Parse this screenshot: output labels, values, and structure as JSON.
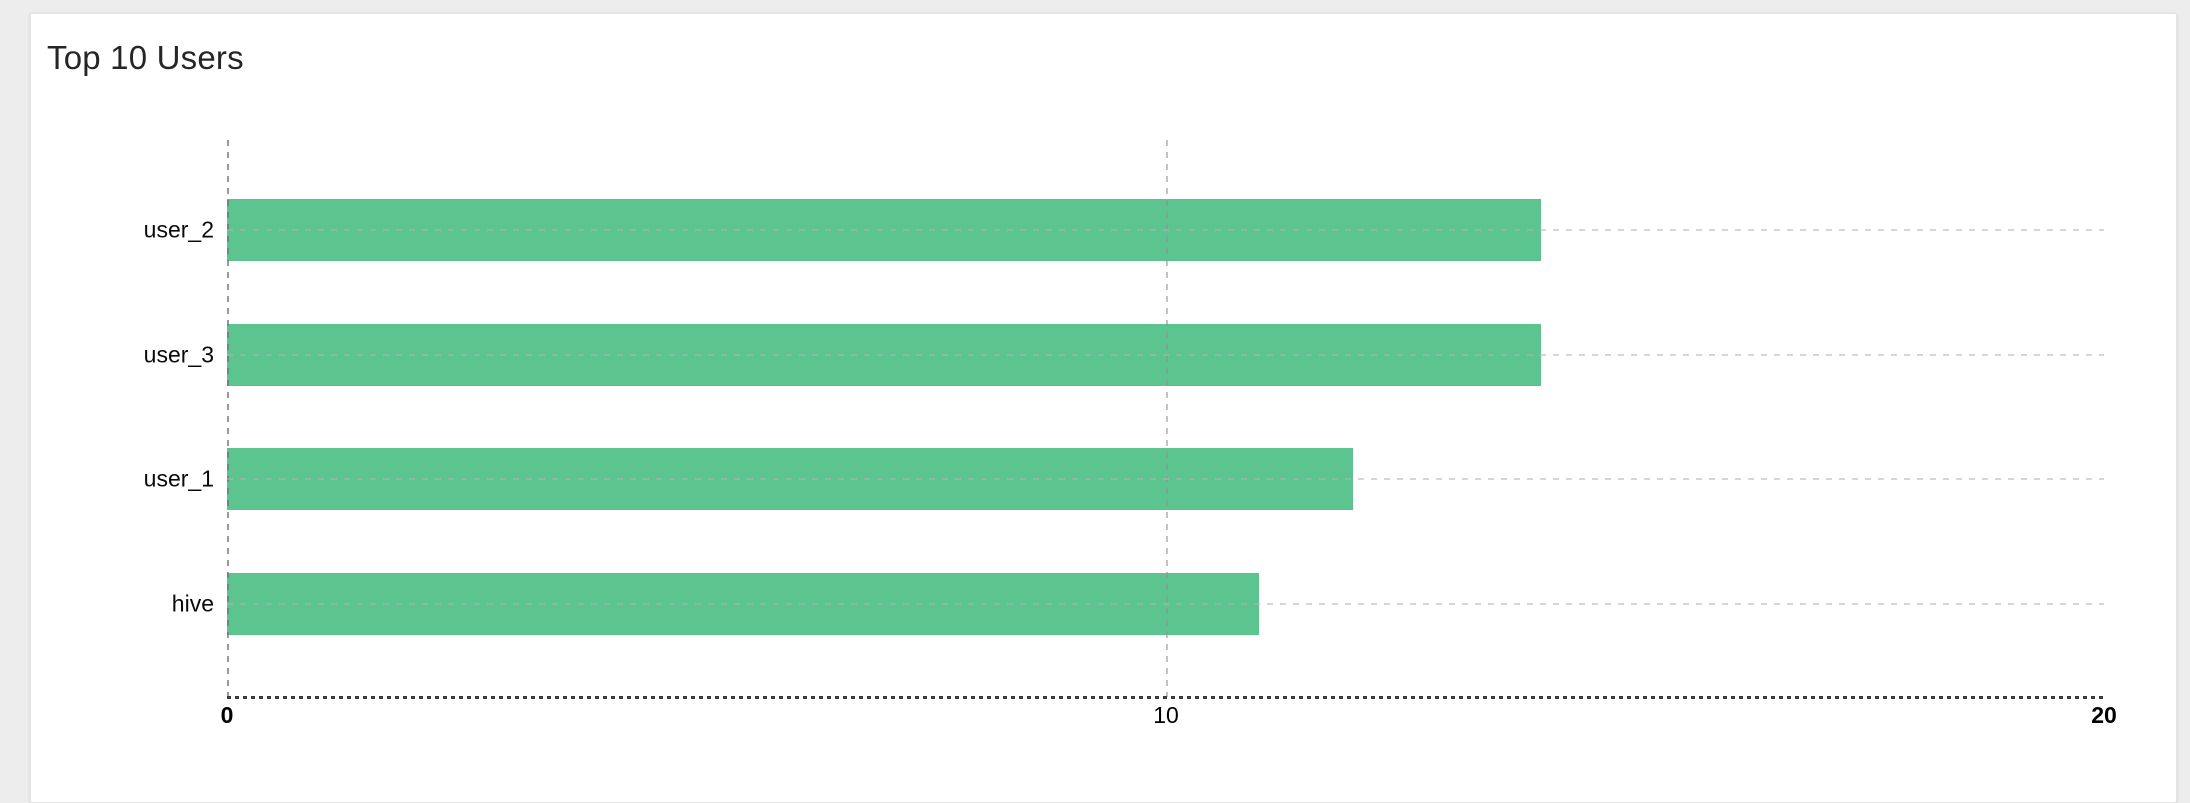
{
  "page": {
    "background_color": "#ededed"
  },
  "card": {
    "title": "Top 10 Users",
    "background_color": "#ffffff"
  },
  "chart_data": {
    "type": "bar",
    "orientation": "horizontal",
    "title": "Top 10 Users",
    "categories": [
      "user_2",
      "user_3",
      "user_1",
      "hive"
    ],
    "values": [
      14,
      14,
      12,
      11
    ],
    "xlabel": "",
    "ylabel": "",
    "xlim": [
      0,
      20
    ],
    "x_ticks": [
      0,
      10,
      20
    ],
    "bold_min_max_ticks": true,
    "bar_color": "#5bc48f",
    "grid": true,
    "gridline_style": "dashed",
    "legend": false
  }
}
